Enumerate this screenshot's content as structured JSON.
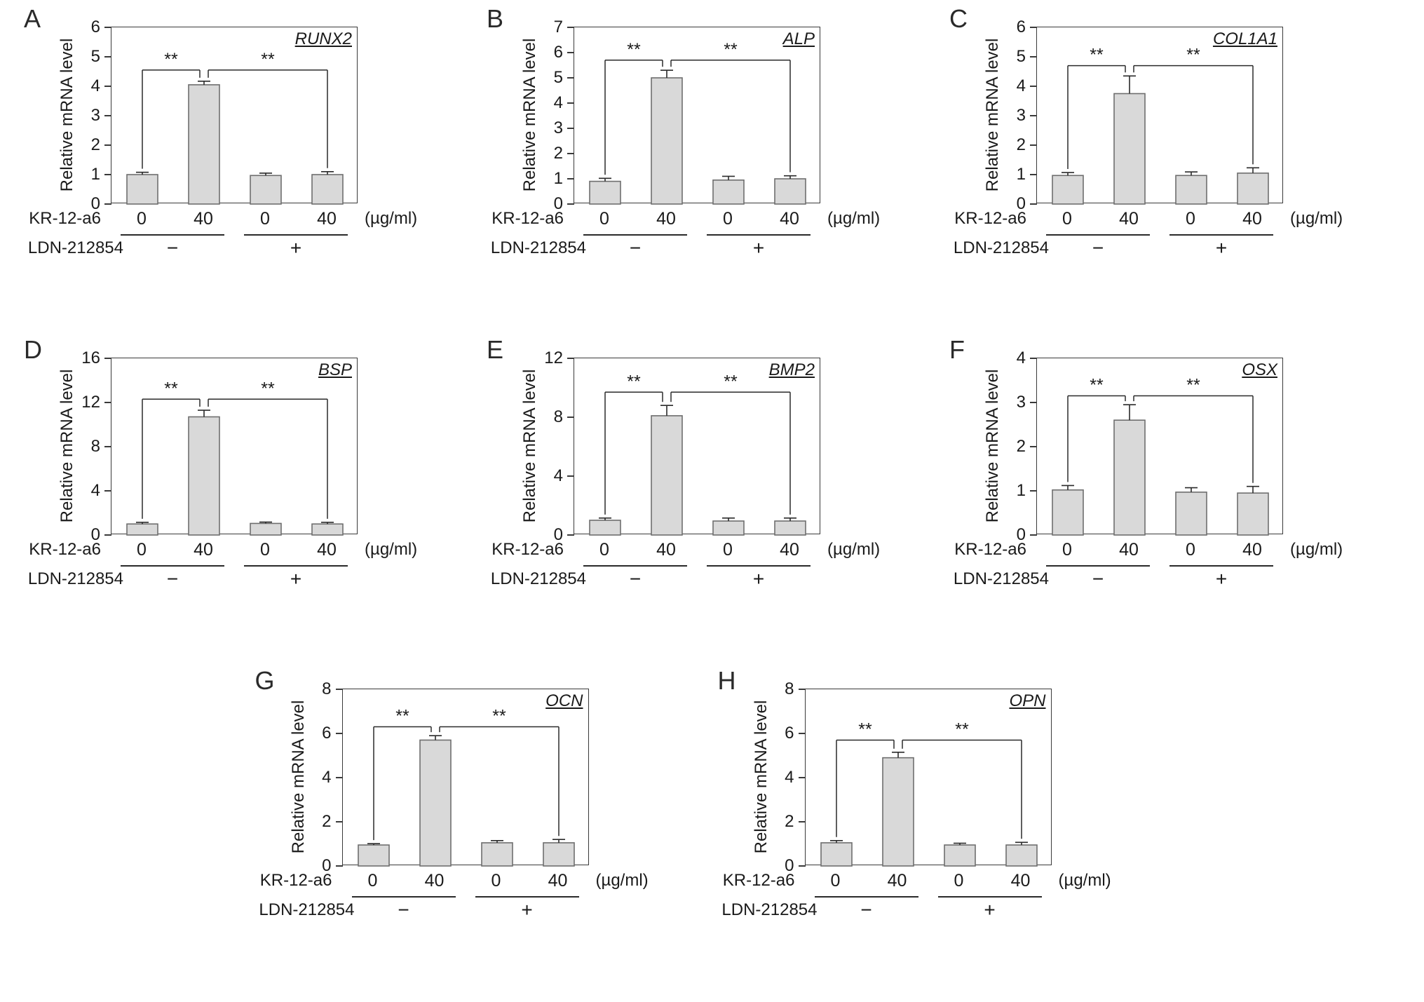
{
  "figure": {
    "background": "#ffffff",
    "bar_fill": "#d9d9d9",
    "bar_stroke": "#6e6e6e",
    "axis_color": "#2a2a2a",
    "text_color": "#1a1a1a",
    "ylabel": "Relative mRNA level",
    "x_group1_label": "KR-12-a6",
    "x_group1_unit": "(µg/ml)",
    "x_group2_label": "LDN-212854",
    "x_group2_values": [
      "−",
      "+"
    ],
    "sig_label": "**"
  },
  "layout": {
    "rows": [
      [
        "A",
        "B",
        "C"
      ],
      [
        "D",
        "E",
        "F"
      ],
      [
        "G",
        "H"
      ]
    ],
    "grid": "off",
    "legend": "none"
  },
  "chart_data": [
    {
      "panel": "A",
      "type": "bar",
      "title": "RUNX2",
      "ylabel": "Relative mRNA level",
      "ylim": [
        0,
        6
      ],
      "yticks": [
        0,
        1,
        2,
        3,
        4,
        5,
        6
      ],
      "categories": [
        "0",
        "40",
        "0",
        "40"
      ],
      "values": [
        1.0,
        4.05,
        0.97,
        1.0
      ],
      "errors": [
        0.08,
        0.12,
        0.08,
        0.1
      ],
      "bracket_y": 4.55,
      "brackets": [
        {
          "from": 0,
          "to": 1,
          "label": "**"
        },
        {
          "from": 1,
          "to": 3,
          "label": "**"
        }
      ]
    },
    {
      "panel": "B",
      "type": "bar",
      "title": "ALP",
      "ylabel": "Relative mRNA level",
      "ylim": [
        0,
        7
      ],
      "yticks": [
        0,
        1,
        2,
        3,
        4,
        5,
        6,
        7
      ],
      "categories": [
        "0",
        "40",
        "0",
        "40"
      ],
      "values": [
        0.9,
        5.0,
        0.95,
        1.0
      ],
      "errors": [
        0.12,
        0.3,
        0.15,
        0.12
      ],
      "bracket_y": 5.7,
      "brackets": [
        {
          "from": 0,
          "to": 1,
          "label": "**"
        },
        {
          "from": 1,
          "to": 3,
          "label": "**"
        }
      ]
    },
    {
      "panel": "C",
      "type": "bar",
      "title": "COL1A1",
      "ylabel": "Relative mRNA level",
      "ylim": [
        0,
        6
      ],
      "yticks": [
        0,
        1,
        2,
        3,
        4,
        5,
        6
      ],
      "categories": [
        "0",
        "40",
        "0",
        "40"
      ],
      "values": [
        0.97,
        3.75,
        0.97,
        1.05
      ],
      "errors": [
        0.1,
        0.6,
        0.12,
        0.18
      ],
      "bracket_y": 4.7,
      "brackets": [
        {
          "from": 0,
          "to": 1,
          "label": "**"
        },
        {
          "from": 1,
          "to": 3,
          "label": "**"
        }
      ]
    },
    {
      "panel": "D",
      "type": "bar",
      "title": "BSP",
      "ylabel": "Relative mRNA level",
      "ylim": [
        0,
        16
      ],
      "yticks": [
        0,
        4,
        8,
        12,
        16
      ],
      "categories": [
        "0",
        "40",
        "0",
        "40"
      ],
      "values": [
        1.0,
        10.7,
        1.05,
        1.0
      ],
      "errors": [
        0.15,
        0.6,
        0.12,
        0.15
      ],
      "bracket_y": 12.3,
      "brackets": [
        {
          "from": 0,
          "to": 1,
          "label": "**"
        },
        {
          "from": 1,
          "to": 3,
          "label": "**"
        }
      ]
    },
    {
      "panel": "E",
      "type": "bar",
      "title": "BMP2",
      "ylabel": "Relative mRNA level",
      "ylim": [
        0,
        12
      ],
      "yticks": [
        0,
        4,
        8,
        12
      ],
      "categories": [
        "0",
        "40",
        "0",
        "40"
      ],
      "values": [
        1.0,
        8.1,
        0.95,
        0.95
      ],
      "errors": [
        0.15,
        0.7,
        0.2,
        0.2
      ],
      "bracket_y": 9.7,
      "brackets": [
        {
          "from": 0,
          "to": 1,
          "label": "**"
        },
        {
          "from": 1,
          "to": 3,
          "label": "**"
        }
      ]
    },
    {
      "panel": "F",
      "type": "bar",
      "title": "OSX",
      "ylabel": "Relative mRNA level",
      "ylim": [
        0,
        4
      ],
      "yticks": [
        0,
        1,
        2,
        3,
        4
      ],
      "categories": [
        "0",
        "40",
        "0",
        "40"
      ],
      "values": [
        1.02,
        2.6,
        0.97,
        0.95
      ],
      "errors": [
        0.1,
        0.35,
        0.1,
        0.15
      ],
      "bracket_y": 3.15,
      "brackets": [
        {
          "from": 0,
          "to": 1,
          "label": "**"
        },
        {
          "from": 1,
          "to": 3,
          "label": "**"
        }
      ]
    },
    {
      "panel": "G",
      "type": "bar",
      "title": "OCN",
      "ylabel": "Relative mRNA level",
      "ylim": [
        0,
        8
      ],
      "yticks": [
        0,
        2,
        4,
        6,
        8
      ],
      "categories": [
        "0",
        "40",
        "0",
        "40"
      ],
      "values": [
        0.95,
        5.7,
        1.05,
        1.05
      ],
      "errors": [
        0.06,
        0.2,
        0.1,
        0.15
      ],
      "bracket_y": 6.3,
      "brackets": [
        {
          "from": 0,
          "to": 1,
          "label": "**"
        },
        {
          "from": 1,
          "to": 3,
          "label": "**"
        }
      ]
    },
    {
      "panel": "H",
      "type": "bar",
      "title": "OPN",
      "ylabel": "Relative mRNA level",
      "ylim": [
        0,
        8
      ],
      "yticks": [
        0,
        2,
        4,
        6,
        8
      ],
      "categories": [
        "0",
        "40",
        "0",
        "40"
      ],
      "values": [
        1.05,
        4.9,
        0.95,
        0.95
      ],
      "errors": [
        0.1,
        0.25,
        0.08,
        0.12
      ],
      "bracket_y": 5.7,
      "brackets": [
        {
          "from": 0,
          "to": 1,
          "label": "**"
        },
        {
          "from": 1,
          "to": 3,
          "label": "**"
        }
      ]
    }
  ]
}
